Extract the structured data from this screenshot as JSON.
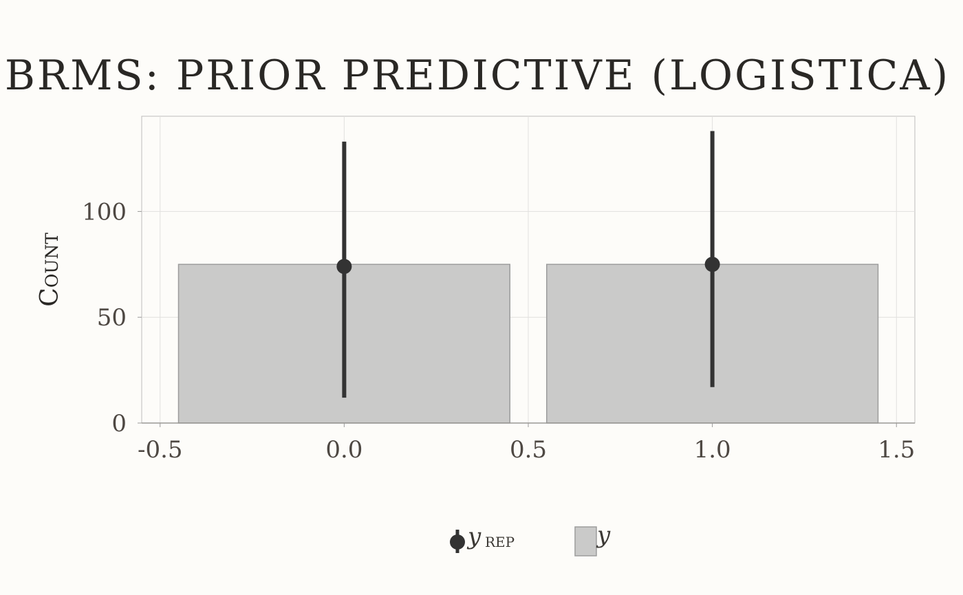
{
  "colors": {
    "background": "#fdfcf9",
    "bar_fill": "#cacac9",
    "bar_stroke": "#9c9c9c",
    "point": "#333333",
    "grid": "#e1e0de",
    "panel_border": "#bdbcba"
  },
  "chart_data": {
    "type": "bar",
    "title": "BRMS: PRIOR PREDICTIVE (LOGISTICA)",
    "ylabel": "Count",
    "xlabel": "",
    "xlim": [
      -0.55,
      1.55
    ],
    "ylim": [
      0,
      145
    ],
    "xticks": [
      -0.5,
      0.0,
      0.5,
      1.0,
      1.5
    ],
    "xtick_labels": [
      "-0.5",
      "0.0",
      "0.5",
      "1.0",
      "1.5"
    ],
    "yticks": [
      0,
      50,
      100
    ],
    "ytick_labels": [
      "0",
      "50",
      "100"
    ],
    "grid": true,
    "legend_position": "bottom",
    "bar_width": 0.9,
    "series": [
      {
        "name": "y",
        "kind": "bar",
        "x": [
          0,
          1
        ],
        "values": [
          75,
          75
        ]
      },
      {
        "name": "y_rep",
        "kind": "pointrange",
        "x": [
          0,
          1
        ],
        "values": [
          74,
          75
        ],
        "lower": [
          12,
          17
        ],
        "upper": [
          133,
          138
        ]
      }
    ],
    "legend": [
      {
        "symbol": "pointrange",
        "label": "y",
        "subscript": "REP"
      },
      {
        "symbol": "bar",
        "label": "y",
        "subscript": ""
      }
    ]
  }
}
